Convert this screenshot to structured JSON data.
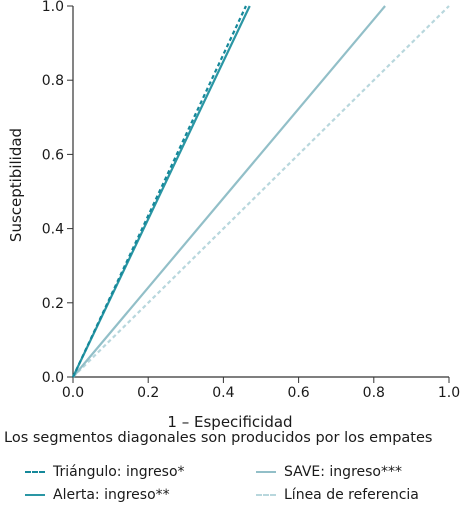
{
  "chart_data": {
    "type": "line",
    "title": "",
    "xlabel": "1 – Especificidad",
    "ylabel": "Susceptibilidad",
    "xlim": [
      0,
      1
    ],
    "ylim": [
      0,
      1
    ],
    "xticks": [
      "0.0",
      "0.2",
      "0.4",
      "0.6",
      "0.8",
      "1.0"
    ],
    "yticks": [
      "0.0",
      "0.2",
      "0.4",
      "0.6",
      "0.8",
      "1.0"
    ],
    "grid": false,
    "legend_position": "bottom",
    "series": [
      {
        "name": "Triángulo: ingreso*",
        "color": "#15889a",
        "dashed": true,
        "x": [
          0,
          0.46
        ],
        "y": [
          0,
          1.0
        ]
      },
      {
        "name": "Alerta: ingreso**",
        "color": "#2a96a4",
        "dashed": false,
        "x": [
          0,
          0.47
        ],
        "y": [
          0,
          1.0
        ]
      },
      {
        "name": "SAVE: ingreso***",
        "color": "#92bfc8",
        "dashed": false,
        "x": [
          0,
          0.83
        ],
        "y": [
          0,
          1.0
        ]
      },
      {
        "name": "Línea de referencia",
        "color": "#b8d7dd",
        "dashed": true,
        "x": [
          0,
          1.0
        ],
        "y": [
          0,
          1.0
        ]
      }
    ]
  },
  "note": "Los segmentos diagonales son producidos por los empates"
}
